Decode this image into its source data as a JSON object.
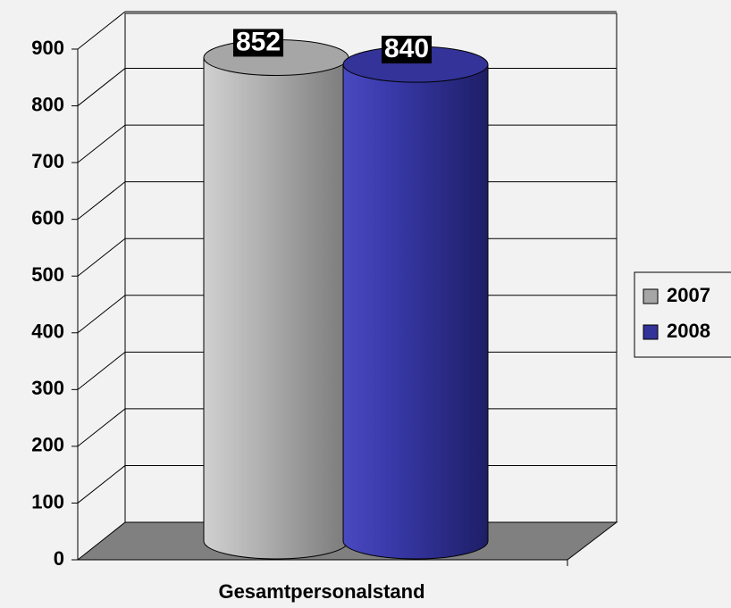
{
  "chart_data": {
    "type": "bar3d-cylinder",
    "categories": [
      "Gesamtpersonalstand"
    ],
    "series": [
      {
        "name": "2007",
        "color": "#a6a6a6",
        "values": [
          852
        ]
      },
      {
        "name": "2008",
        "color": "#333399",
        "values": [
          840
        ]
      }
    ],
    "ylim": [
      0,
      900
    ],
    "yticks": [
      0,
      100,
      200,
      300,
      400,
      500,
      600,
      700,
      800,
      900
    ],
    "grid": true,
    "legend": "right"
  }
}
